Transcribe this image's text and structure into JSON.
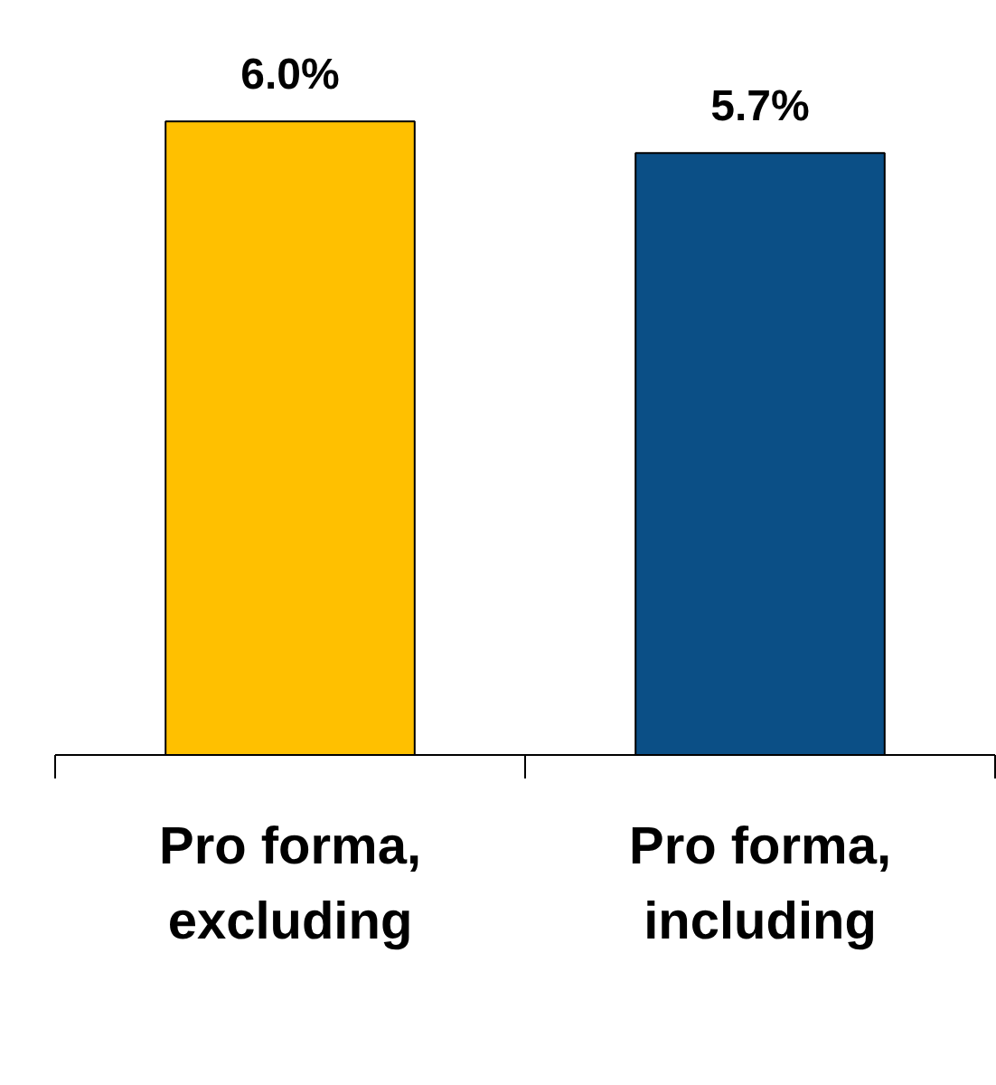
{
  "chart_data": {
    "type": "bar",
    "categories": [
      "Pro forma, excluding",
      "Pro forma, including"
    ],
    "values": [
      6.0,
      5.7
    ],
    "colors": [
      "#ffc000",
      "#0b4f86"
    ],
    "value_labels": [
      "6.0%",
      "5.7%"
    ],
    "grid": false
  }
}
